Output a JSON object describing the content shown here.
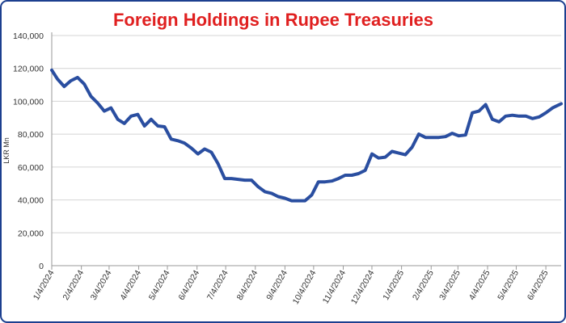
{
  "chart_data": {
    "type": "line",
    "title": "Foreign Holdings in Rupee Treasuries",
    "ylabel": "LKR Mn",
    "xlabel": "",
    "ylim": [
      0,
      140000
    ],
    "yticks": [
      0,
      20000,
      40000,
      60000,
      80000,
      100000,
      120000,
      140000
    ],
    "ytick_labels": [
      "0",
      "20,000",
      "40,000",
      "60,000",
      "80,000",
      "100,000",
      "120,000",
      "140,000"
    ],
    "xlim": [
      "2024-01-04",
      "2025-06-20"
    ],
    "xtick_labels": [
      "1/4/2024",
      "2/4/2024",
      "3/4/2024",
      "4/4/2024",
      "5/4/2024",
      "6/4/2024",
      "7/4/2024",
      "8/4/2024",
      "9/4/2024",
      "10/4/2024",
      "11/4/2024",
      "12/4/2024",
      "1/4/2025",
      "2/4/2025",
      "3/4/2025",
      "4/4/2025",
      "5/4/2025",
      "6/4/2025"
    ],
    "xtick_dates": [
      "2024-01-04",
      "2024-02-04",
      "2024-03-04",
      "2024-04-04",
      "2024-05-04",
      "2024-06-04",
      "2024-07-04",
      "2024-08-04",
      "2024-09-04",
      "2024-10-04",
      "2024-11-04",
      "2024-12-04",
      "2025-01-04",
      "2025-02-04",
      "2025-03-04",
      "2025-04-04",
      "2025-05-04",
      "2025-06-04"
    ],
    "grid": true,
    "colors": {
      "line": "#2a4ea0",
      "title": "#e02020",
      "frame": "#1c3f8f"
    },
    "series": [
      {
        "x": [
          "2024-01-04",
          "2024-01-10",
          "2024-01-17",
          "2024-01-24",
          "2024-01-31",
          "2024-02-07",
          "2024-02-14",
          "2024-02-21",
          "2024-02-28",
          "2024-03-06",
          "2024-03-13",
          "2024-03-20",
          "2024-03-27",
          "2024-04-03",
          "2024-04-10",
          "2024-04-17",
          "2024-04-24",
          "2024-05-01",
          "2024-05-08",
          "2024-05-15",
          "2024-05-22",
          "2024-05-29",
          "2024-06-05",
          "2024-06-12",
          "2024-06-19",
          "2024-06-26",
          "2024-07-03",
          "2024-07-10",
          "2024-07-17",
          "2024-07-24",
          "2024-07-31",
          "2024-08-07",
          "2024-08-14",
          "2024-08-21",
          "2024-08-28",
          "2024-09-04",
          "2024-09-11",
          "2024-09-18",
          "2024-09-25",
          "2024-10-02",
          "2024-10-09",
          "2024-10-16",
          "2024-10-23",
          "2024-10-30",
          "2024-11-06",
          "2024-11-13",
          "2024-11-20",
          "2024-11-27",
          "2024-12-04",
          "2024-12-11",
          "2024-12-18",
          "2024-12-25",
          "2025-01-01",
          "2025-01-08",
          "2025-01-15",
          "2025-01-22",
          "2025-01-29",
          "2025-02-05",
          "2025-02-12",
          "2025-02-19",
          "2025-02-26",
          "2025-03-05",
          "2025-03-12",
          "2025-03-19",
          "2025-03-26",
          "2025-04-02",
          "2025-04-09",
          "2025-04-16",
          "2025-04-23",
          "2025-04-30",
          "2025-05-07",
          "2025-05-14",
          "2025-05-21",
          "2025-05-28",
          "2025-06-04",
          "2025-06-11",
          "2025-06-20"
        ],
        "values": [
          119000,
          113500,
          109000,
          112500,
          114500,
          110500,
          103000,
          99000,
          94000,
          96000,
          89000,
          86500,
          91000,
          92000,
          85000,
          89000,
          85000,
          84500,
          77000,
          76000,
          74500,
          71500,
          68000,
          71000,
          69000,
          62000,
          53000,
          53000,
          52500,
          52000,
          52000,
          48000,
          45000,
          44000,
          42000,
          41000,
          39500,
          39500,
          39500,
          43000,
          51000,
          51000,
          51500,
          53000,
          55000,
          55000,
          56000,
          58000,
          68000,
          65500,
          66000,
          69500,
          68500,
          67500,
          72000,
          80000,
          78000,
          78000,
          78000,
          78500,
          80500,
          79000,
          79500,
          93000,
          94000,
          98000,
          89000,
          87500,
          91000,
          91500,
          91000,
          91000,
          89500,
          90500,
          93000,
          96000,
          98500
        ]
      }
    ]
  }
}
